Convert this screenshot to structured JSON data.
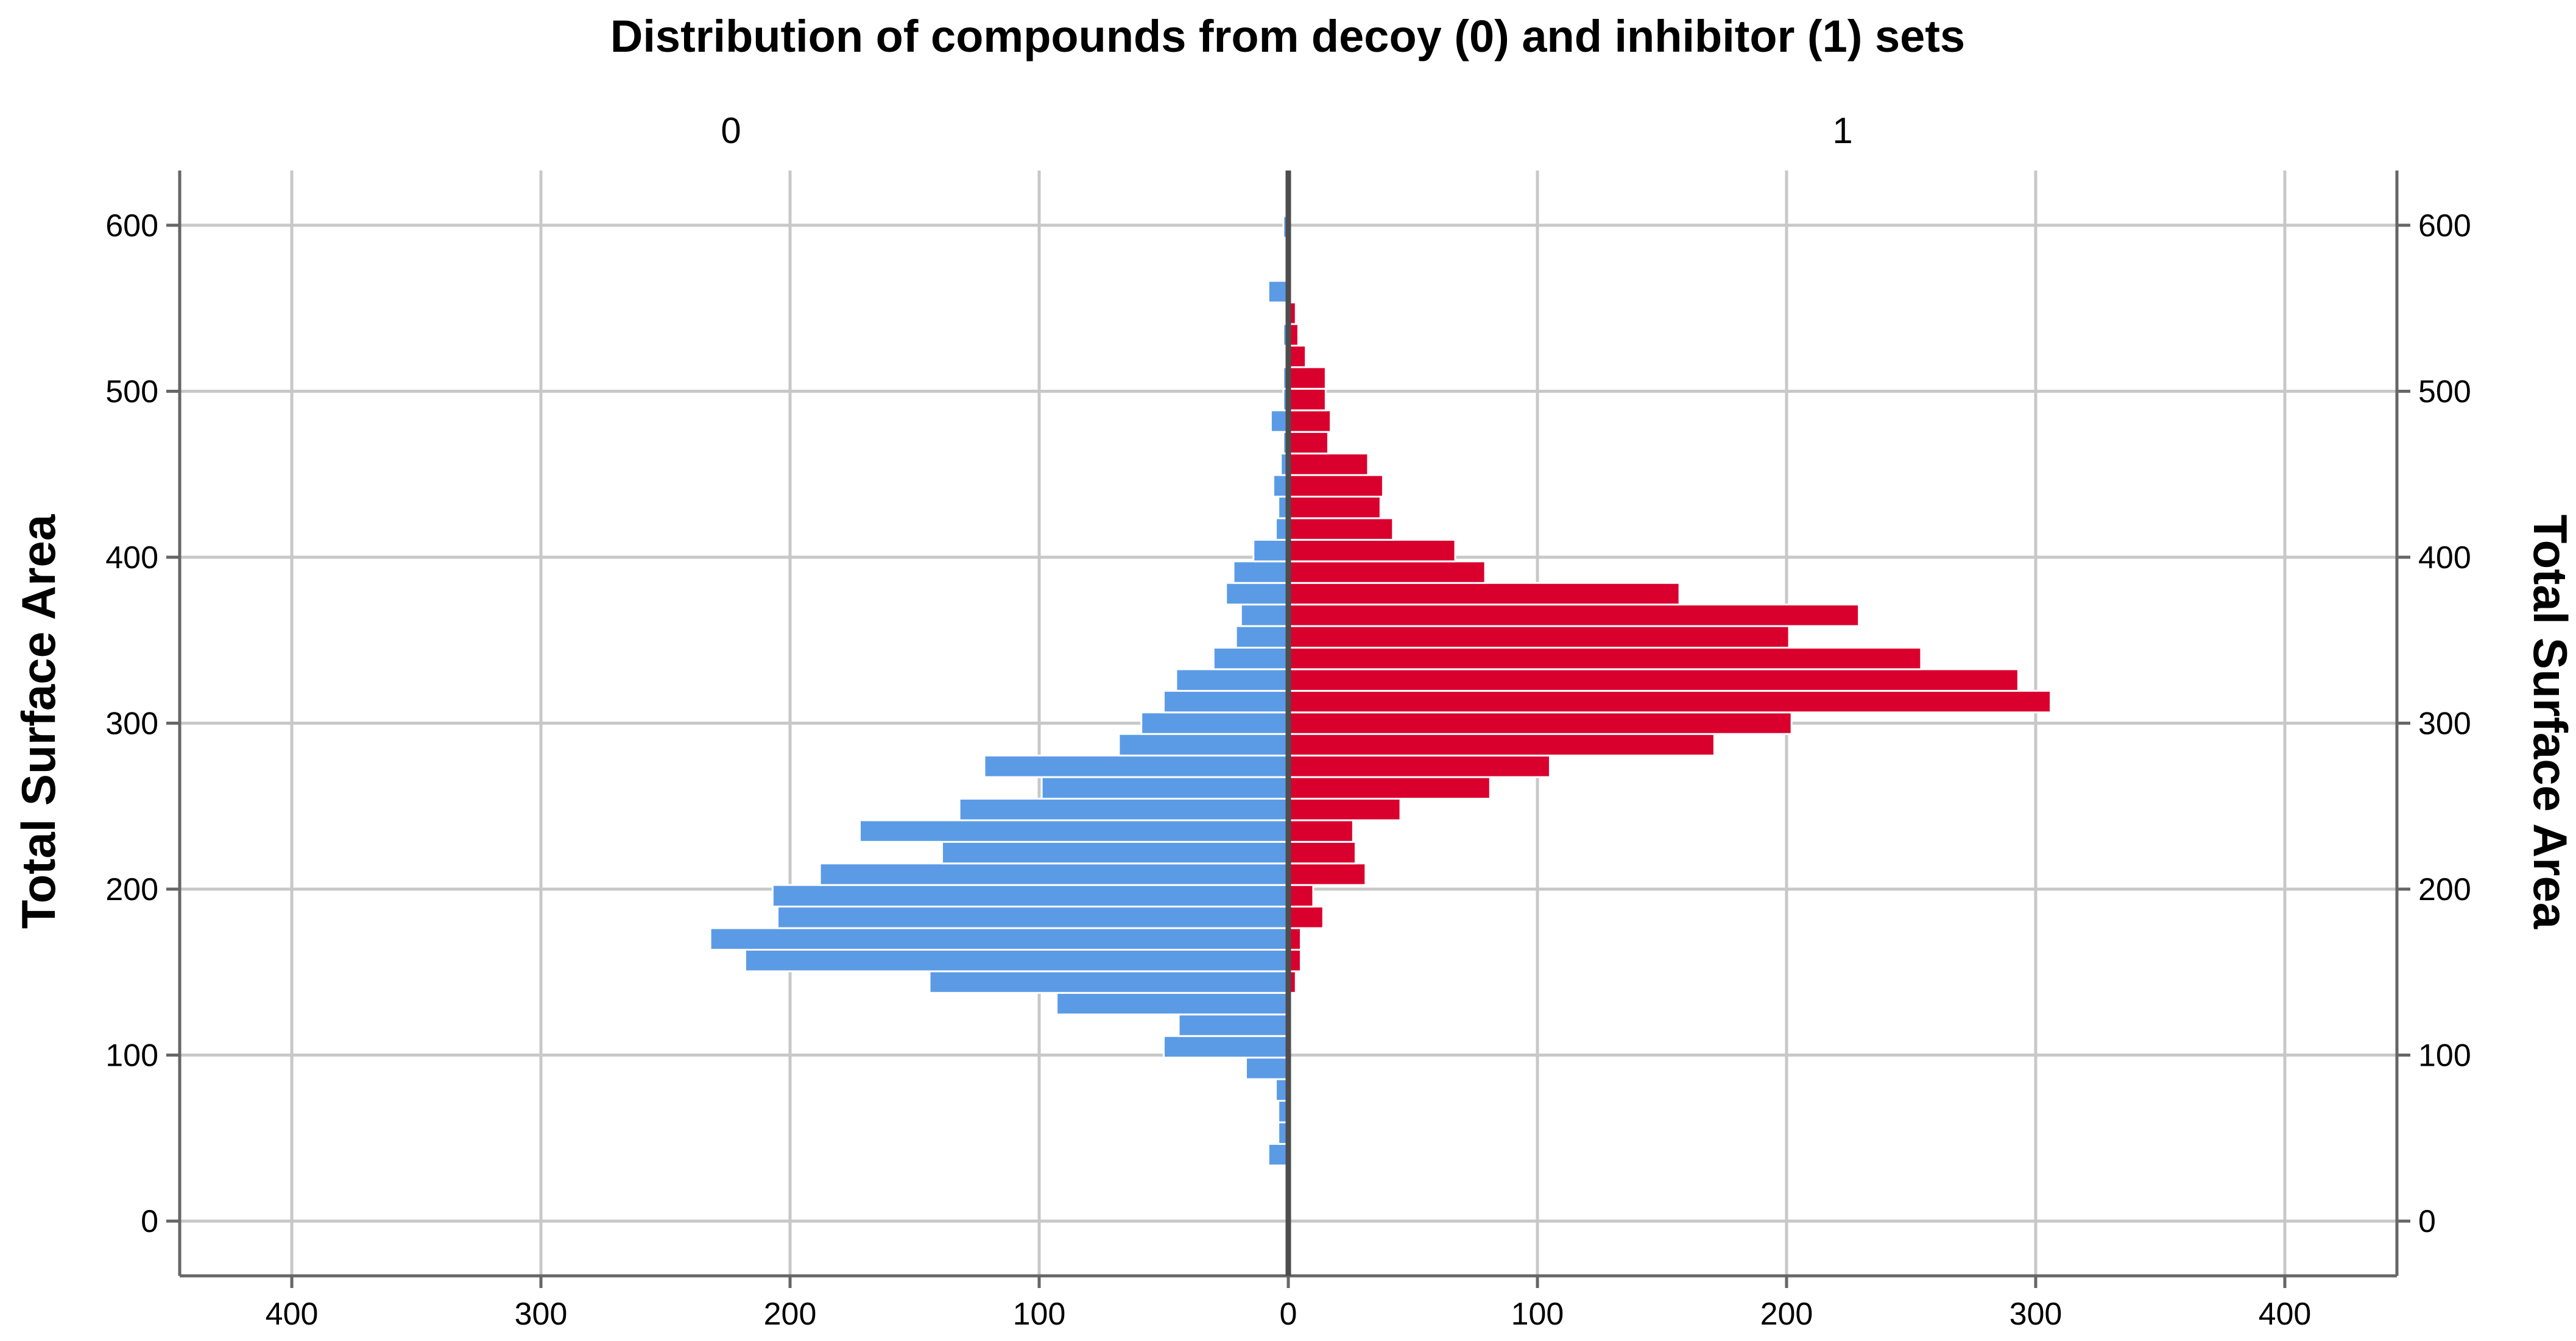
{
  "chart_data": {
    "type": "bar",
    "orientation": "horizontal-population-pyramid",
    "title": "Distribution of compounds from decoy (0) and inhibitor (1) sets",
    "ylabel": "Total Surface Area",
    "ylabel_right": "Total Surface Area",
    "ylim": [
      -33,
      633
    ],
    "xlim": [
      -445,
      445
    ],
    "x_ticks": [
      -400,
      -300,
      -200,
      -100,
      0,
      100,
      200,
      300,
      400
    ],
    "x_tick_labels": [
      "400",
      "300",
      "200",
      "100",
      "0",
      "100",
      "200",
      "300",
      "400"
    ],
    "y_ticks": [
      0,
      100,
      200,
      300,
      400,
      500,
      600
    ],
    "y_tick_labels": [
      "0",
      "100",
      "200",
      "300",
      "400",
      "500",
      "600"
    ],
    "bin_width": 13,
    "grid": true,
    "legend": "none",
    "colors": {
      "decoy": "#5B9BE6",
      "inhibitor": "#D9002E",
      "grid": "#c8c8c8",
      "axis": "#4d4d4d"
    },
    "series": [
      {
        "name": "0",
        "side": "left",
        "bins": [
          {
            "y": 40,
            "count": 8
          },
          {
            "y": 53,
            "count": 4
          },
          {
            "y": 66,
            "count": 4
          },
          {
            "y": 79,
            "count": 5
          },
          {
            "y": 92,
            "count": 17
          },
          {
            "y": 105,
            "count": 50
          },
          {
            "y": 118,
            "count": 44
          },
          {
            "y": 131,
            "count": 93
          },
          {
            "y": 144,
            "count": 144
          },
          {
            "y": 157,
            "count": 218
          },
          {
            "y": 170,
            "count": 232
          },
          {
            "y": 183,
            "count": 205
          },
          {
            "y": 196,
            "count": 207
          },
          {
            "y": 209,
            "count": 188
          },
          {
            "y": 222,
            "count": 139
          },
          {
            "y": 235,
            "count": 172
          },
          {
            "y": 248,
            "count": 132
          },
          {
            "y": 261,
            "count": 99
          },
          {
            "y": 274,
            "count": 122
          },
          {
            "y": 287,
            "count": 68
          },
          {
            "y": 300,
            "count": 59
          },
          {
            "y": 313,
            "count": 50
          },
          {
            "y": 326,
            "count": 45
          },
          {
            "y": 339,
            "count": 30
          },
          {
            "y": 352,
            "count": 21
          },
          {
            "y": 365,
            "count": 19
          },
          {
            "y": 378,
            "count": 25
          },
          {
            "y": 391,
            "count": 22
          },
          {
            "y": 404,
            "count": 14
          },
          {
            "y": 417,
            "count": 5
          },
          {
            "y": 430,
            "count": 4
          },
          {
            "y": 443,
            "count": 6
          },
          {
            "y": 456,
            "count": 3
          },
          {
            "y": 469,
            "count": 2
          },
          {
            "y": 482,
            "count": 7
          },
          {
            "y": 495,
            "count": 2
          },
          {
            "y": 508,
            "count": 2
          },
          {
            "y": 521,
            "count": 1
          },
          {
            "y": 534,
            "count": 2
          },
          {
            "y": 547,
            "count": 1
          },
          {
            "y": 560,
            "count": 8
          },
          {
            "y": 599,
            "count": 2
          }
        ]
      },
      {
        "name": "1",
        "side": "right",
        "bins": [
          {
            "y": 144,
            "count": 3
          },
          {
            "y": 157,
            "count": 5
          },
          {
            "y": 170,
            "count": 5
          },
          {
            "y": 183,
            "count": 14
          },
          {
            "y": 196,
            "count": 10
          },
          {
            "y": 209,
            "count": 31
          },
          {
            "y": 222,
            "count": 27
          },
          {
            "y": 235,
            "count": 26
          },
          {
            "y": 248,
            "count": 45
          },
          {
            "y": 261,
            "count": 81
          },
          {
            "y": 274,
            "count": 105
          },
          {
            "y": 287,
            "count": 171
          },
          {
            "y": 300,
            "count": 202
          },
          {
            "y": 313,
            "count": 306
          },
          {
            "y": 326,
            "count": 293
          },
          {
            "y": 339,
            "count": 254
          },
          {
            "y": 352,
            "count": 201
          },
          {
            "y": 365,
            "count": 229
          },
          {
            "y": 378,
            "count": 157
          },
          {
            "y": 391,
            "count": 79
          },
          {
            "y": 404,
            "count": 67
          },
          {
            "y": 417,
            "count": 42
          },
          {
            "y": 430,
            "count": 37
          },
          {
            "y": 443,
            "count": 38
          },
          {
            "y": 456,
            "count": 32
          },
          {
            "y": 469,
            "count": 16
          },
          {
            "y": 482,
            "count": 17
          },
          {
            "y": 495,
            "count": 15
          },
          {
            "y": 508,
            "count": 15
          },
          {
            "y": 521,
            "count": 7
          },
          {
            "y": 534,
            "count": 4
          },
          {
            "y": 547,
            "count": 3
          }
        ]
      }
    ]
  }
}
